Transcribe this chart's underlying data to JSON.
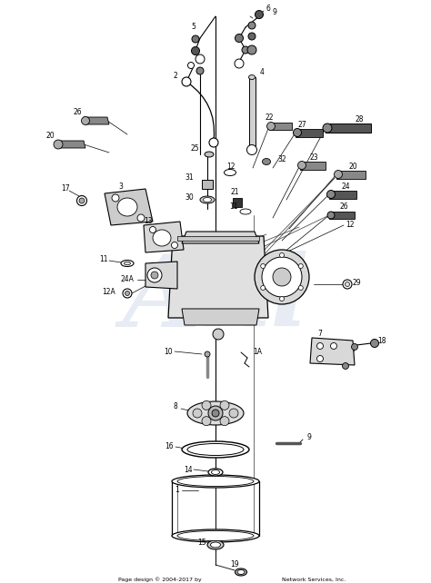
{
  "bg_color": "#ffffff",
  "watermark_text": "Akl",
  "watermark_color": "#c8d4e8",
  "watermark_alpha": 0.45,
  "footer": "Page design © 2004-2017 by",
  "footer2": "Network Services, Inc.",
  "figsize": [
    4.74,
    6.42
  ],
  "dpi": 100
}
